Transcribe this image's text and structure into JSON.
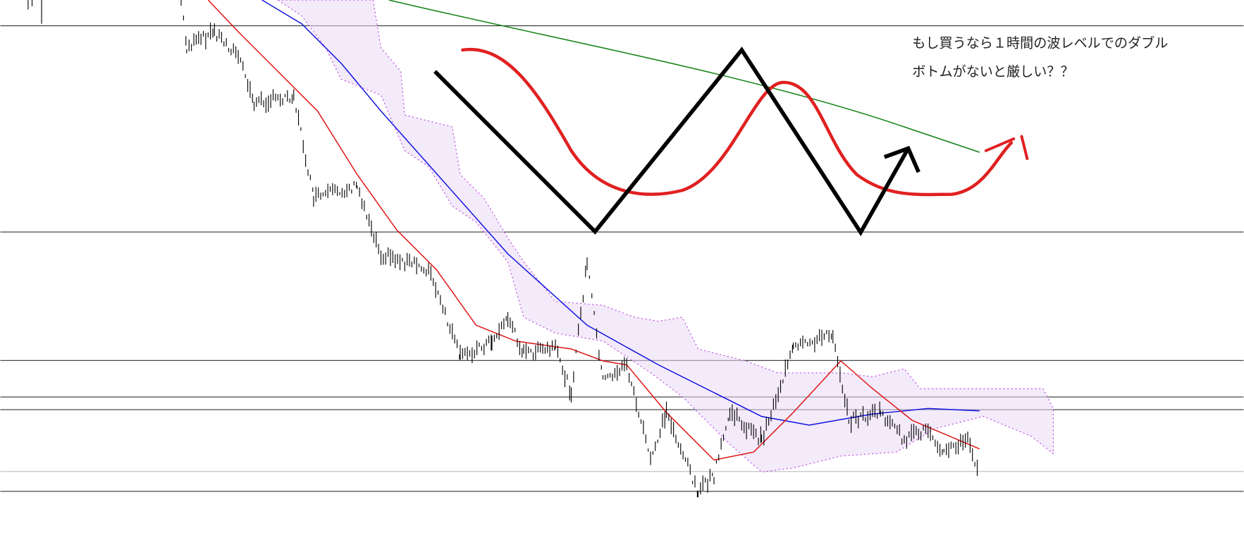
{
  "annotation": {
    "lines": [
      "もし買うなら１時間の波レベルでのダブル",
      "ボトムがないと厳しい？？"
    ]
  }
}
